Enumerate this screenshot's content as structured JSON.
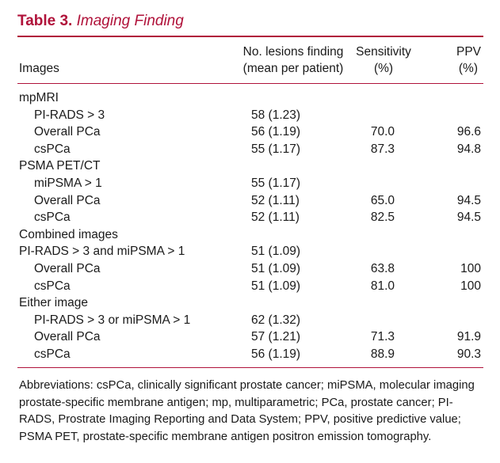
{
  "title": {
    "number": "Table 3.",
    "name": "Imaging Finding"
  },
  "headers": {
    "images": "Images",
    "lesions_l1": "No. lesions finding",
    "lesions_l2": "(mean per patient)",
    "sens_l1": "Sensitivity",
    "sens_l2": "(%)",
    "ppv_l1": "PPV",
    "ppv_l2": "(%)"
  },
  "rows": [
    {
      "label": "mpMRI",
      "indent": false,
      "lesions": "",
      "sens": "",
      "ppv": ""
    },
    {
      "label": "PI-RADS > 3",
      "indent": true,
      "lesions": "58 (1.23)",
      "sens": "",
      "ppv": ""
    },
    {
      "label": "Overall PCa",
      "indent": true,
      "lesions": "56 (1.19)",
      "sens": "70.0",
      "ppv": "96.6"
    },
    {
      "label": "csPCa",
      "indent": true,
      "lesions": "55 (1.17)",
      "sens": "87.3",
      "ppv": "94.8"
    },
    {
      "label": "PSMA PET/CT",
      "indent": false,
      "lesions": "",
      "sens": "",
      "ppv": ""
    },
    {
      "label": "miPSMA > 1",
      "indent": true,
      "lesions": "55 (1.17)",
      "sens": "",
      "ppv": ""
    },
    {
      "label": "Overall PCa",
      "indent": true,
      "lesions": "52 (1.11)",
      "sens": "65.0",
      "ppv": "94.5"
    },
    {
      "label": "csPCa",
      "indent": true,
      "lesions": "52 (1.11)",
      "sens": "82.5",
      "ppv": "94.5"
    },
    {
      "label": "Combined images",
      "indent": false,
      "lesions": "",
      "sens": "",
      "ppv": ""
    },
    {
      "label": "PI-RADS > 3 and miPSMA > 1",
      "indent": false,
      "lesions": "51 (1.09)",
      "sens": "",
      "ppv": ""
    },
    {
      "label": "Overall PCa",
      "indent": true,
      "lesions": "51 (1.09)",
      "sens": "63.8",
      "ppv": "100"
    },
    {
      "label": "csPCa",
      "indent": true,
      "lesions": "51 (1.09)",
      "sens": "81.0",
      "ppv": "100"
    },
    {
      "label": "Either image",
      "indent": false,
      "lesions": "",
      "sens": "",
      "ppv": ""
    },
    {
      "label": "PI-RADS > 3 or miPSMA > 1",
      "indent": true,
      "lesions": "62 (1.32)",
      "sens": "",
      "ppv": ""
    },
    {
      "label": "Overall PCa",
      "indent": true,
      "lesions": "57 (1.21)",
      "sens": "71.3",
      "ppv": "91.9"
    },
    {
      "label": "csPCa",
      "indent": true,
      "lesions": "56 (1.19)",
      "sens": "88.9",
      "ppv": "90.3"
    }
  ],
  "footnote": [
    "Abbreviations: csPCa, clinically significant prostate cancer; miPSMA, molecular imaging",
    "prostate-specific membrane antigen; mp, multiparametric; PCa, prostate cancer; PI-",
    "RADS, Prostrate Imaging Reporting and Data System; PPV, positive predictive value;",
    "PSMA PET, prostate-specific membrane antigen positron emission tomography."
  ],
  "accent_color": "#b0123a"
}
